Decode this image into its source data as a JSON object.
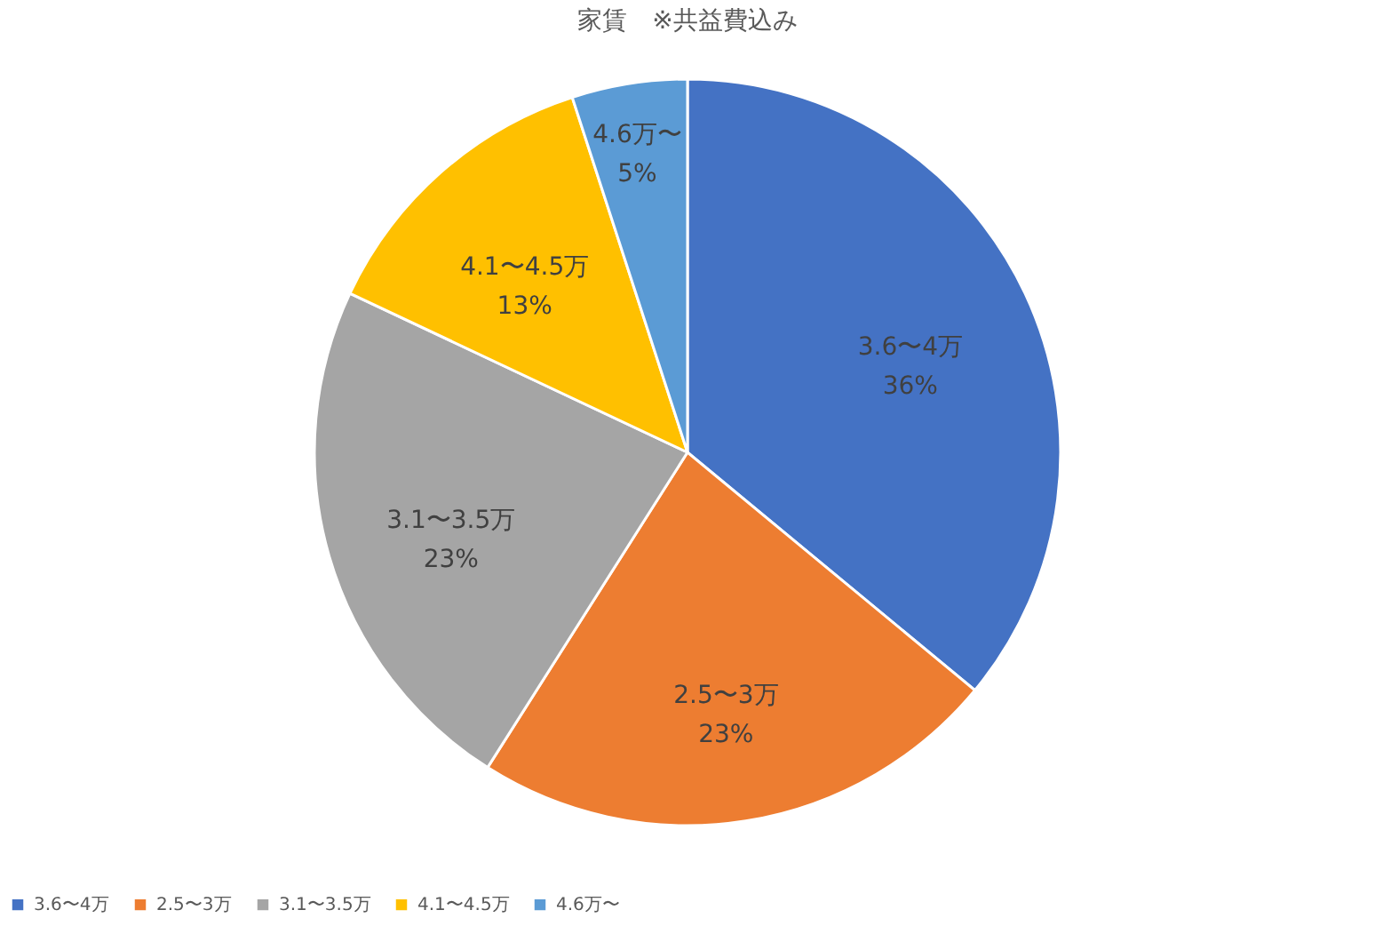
{
  "chart_data": {
    "type": "pie",
    "title": "家賃　※共益費込み",
    "categories": [
      "3.6〜4万",
      "2.5〜3万",
      "3.1〜3.5万",
      "4.1〜4.5万",
      "4.6万〜"
    ],
    "values": [
      36,
      23,
      23,
      13,
      5
    ],
    "value_labels": [
      "36%",
      "23%",
      "23%",
      "13%",
      "5%"
    ],
    "colors": [
      "#4472c4",
      "#ed7d31",
      "#a5a5a5",
      "#ffc000",
      "#5b9bd5"
    ],
    "legend": "bottom"
  }
}
